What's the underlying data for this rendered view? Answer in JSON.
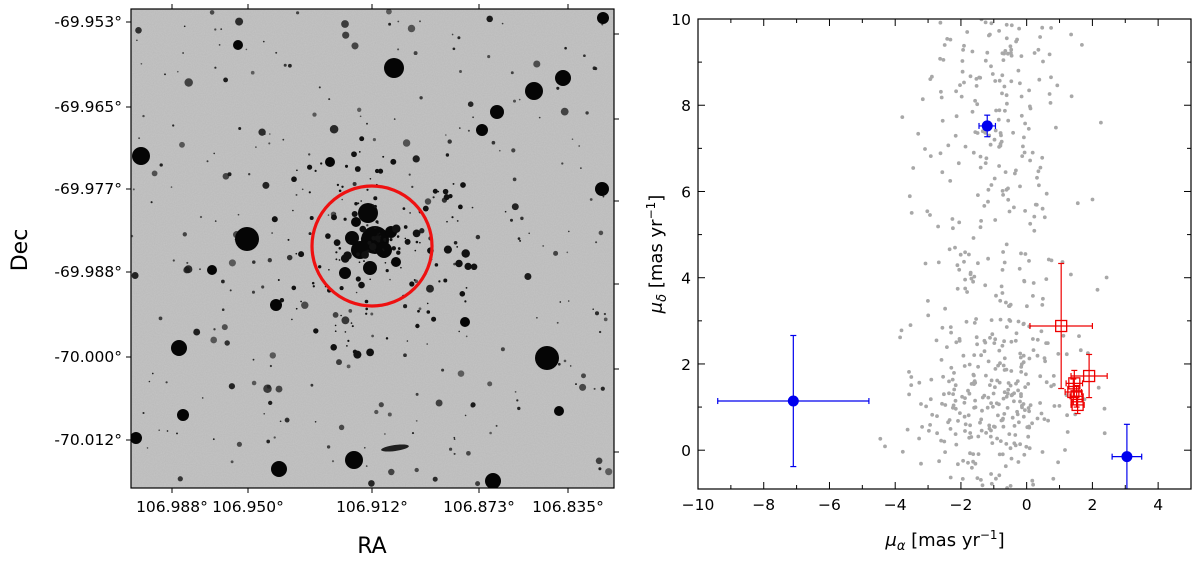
{
  "chart_data": [
    {
      "type": "image",
      "panel": "sky-image",
      "title": "",
      "xlabel": "RA",
      "ylabel": "Dec",
      "colormap": "grayscale (inverted)",
      "marker": "red circle around cluster",
      "marker_color": "#ee1111",
      "x_ticks": [
        "106.988°",
        "106.950°",
        "106.912°",
        "106.873°",
        "106.835°"
      ],
      "y_ticks": [
        "-69.953°",
        "-69.965°",
        "-69.977°",
        "-69.988°",
        "-70.000°",
        "-70.012°"
      ]
    },
    {
      "type": "scatter",
      "panel": "proper-motion",
      "title": "",
      "xlabel": "μα [mas yr−1]",
      "ylabel": "μδ [mas yr−1]",
      "xlim": [
        -10,
        5
      ],
      "ylim": [
        -0.9,
        10
      ],
      "x_ticks": [
        "−10",
        "−8",
        "−6",
        "−4",
        "−2",
        "0",
        "2",
        "4"
      ],
      "y_ticks": [
        "0",
        "2",
        "4",
        "6",
        "8",
        "10"
      ],
      "grid": false,
      "field_stars_color": "#a8a8a8",
      "series": [
        {
          "style": "blue filled circles with error bars",
          "color": "#0000ee",
          "points": [
            {
              "x": -1.2,
              "y": 7.52,
              "xerr": 0.25,
              "yerr": 0.25
            },
            {
              "x": -7.1,
              "y": 1.14,
              "xerr": 2.3,
              "yerr": 1.52
            },
            {
              "x": 3.05,
              "y": -0.15,
              "xerr": 0.45,
              "yerr": 0.75
            }
          ]
        },
        {
          "style": "red open squares with error bars",
          "color": "#ee0000",
          "points": [
            {
              "x": 1.05,
              "y": 2.88,
              "xerr": 0.95,
              "yerr": 1.45
            },
            {
              "x": 1.9,
              "y": 1.72,
              "xerr": 0.55,
              "yerr": 0.5
            },
            {
              "x": 1.45,
              "y": 1.55,
              "xerr": 0.25,
              "yerr": 0.3
            },
            {
              "x": 1.42,
              "y": 1.35,
              "xerr": 0.25,
              "yerr": 0.3
            },
            {
              "x": 1.52,
              "y": 1.25,
              "xerr": 0.2,
              "yerr": 0.25
            },
            {
              "x": 1.55,
              "y": 1.05,
              "xerr": 0.2,
              "yerr": 0.2
            }
          ]
        }
      ]
    }
  ]
}
